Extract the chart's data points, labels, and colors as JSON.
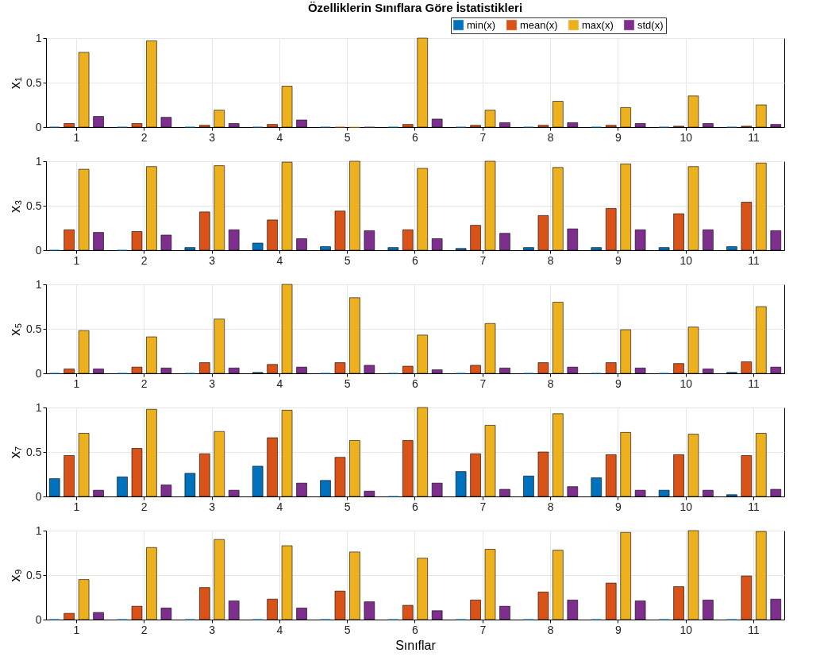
{
  "chart_data": [
    {
      "type": "bar",
      "title": "Özelliklerin Sınıflara Göre İstatistikleri",
      "ylabel": "x₁",
      "categories": [
        "1",
        "2",
        "3",
        "4",
        "5",
        "6",
        "7",
        "8",
        "9",
        "10",
        "11"
      ],
      "ylim": [
        0,
        1
      ],
      "yticks": [
        0,
        0.5,
        1
      ],
      "grid": true,
      "legend": "top right",
      "series": [
        {
          "name": "min(x)",
          "color": "#0072bd",
          "values": [
            0,
            0,
            0,
            0,
            0,
            0,
            0,
            0,
            0,
            0,
            0
          ]
        },
        {
          "name": "mean(x)",
          "color": "#d95319",
          "values": [
            0.04,
            0.04,
            0.02,
            0.03,
            0,
            0.03,
            0.02,
            0.02,
            0.02,
            0.01,
            0.01
          ]
        },
        {
          "name": "max(x)",
          "color": "#edb120",
          "values": [
            0.84,
            0.97,
            0.19,
            0.46,
            0,
            1.0,
            0.19,
            0.29,
            0.22,
            0.35,
            0.25
          ]
        },
        {
          "name": "std(x)",
          "color": "#7e2f8e",
          "values": [
            0.12,
            0.11,
            0.04,
            0.08,
            0,
            0.09,
            0.05,
            0.05,
            0.04,
            0.04,
            0.03
          ]
        }
      ]
    },
    {
      "type": "bar",
      "ylabel": "x₃",
      "categories": [
        "1",
        "2",
        "3",
        "4",
        "5",
        "6",
        "7",
        "8",
        "9",
        "10",
        "11"
      ],
      "ylim": [
        0,
        1
      ],
      "yticks": [
        0,
        0.5,
        1
      ],
      "grid": true,
      "series": [
        {
          "color": "#0072bd",
          "values": [
            0,
            0,
            0.03,
            0.08,
            0.04,
            0.03,
            0.02,
            0.03,
            0.03,
            0.03,
            0.04
          ]
        },
        {
          "color": "#d95319",
          "values": [
            0.23,
            0.21,
            0.43,
            0.34,
            0.44,
            0.23,
            0.28,
            0.39,
            0.47,
            0.41,
            0.54
          ]
        },
        {
          "color": "#edb120",
          "values": [
            0.91,
            0.94,
            0.95,
            0.99,
            1.0,
            0.92,
            1.0,
            0.93,
            0.97,
            0.94,
            0.98
          ]
        },
        {
          "color": "#7e2f8e",
          "values": [
            0.2,
            0.17,
            0.23,
            0.13,
            0.22,
            0.13,
            0.19,
            0.24,
            0.23,
            0.23,
            0.22
          ]
        }
      ]
    },
    {
      "type": "bar",
      "ylabel": "x₅",
      "categories": [
        "1",
        "2",
        "3",
        "4",
        "5",
        "6",
        "7",
        "8",
        "9",
        "10",
        "11"
      ],
      "ylim": [
        0,
        1
      ],
      "yticks": [
        0,
        0.5,
        1
      ],
      "grid": true,
      "series": [
        {
          "color": "#0072bd",
          "values": [
            0,
            0,
            0,
            0.01,
            0,
            0,
            0,
            0,
            0,
            0,
            0.01
          ]
        },
        {
          "color": "#d95319",
          "values": [
            0.05,
            0.07,
            0.12,
            0.1,
            0.12,
            0.08,
            0.09,
            0.12,
            0.12,
            0.11,
            0.13
          ]
        },
        {
          "color": "#edb120",
          "values": [
            0.48,
            0.41,
            0.61,
            1.0,
            0.85,
            0.43,
            0.56,
            0.8,
            0.49,
            0.52,
            0.75
          ]
        },
        {
          "color": "#7e2f8e",
          "values": [
            0.05,
            0.06,
            0.06,
            0.07,
            0.09,
            0.04,
            0.06,
            0.07,
            0.06,
            0.05,
            0.07
          ]
        }
      ]
    },
    {
      "type": "bar",
      "ylabel": "x₇",
      "categories": [
        "1",
        "2",
        "3",
        "4",
        "5",
        "6",
        "7",
        "8",
        "9",
        "10",
        "11"
      ],
      "ylim": [
        0,
        1
      ],
      "yticks": [
        0,
        0.5,
        1
      ],
      "grid": true,
      "series": [
        {
          "color": "#0072bd",
          "values": [
            0.2,
            0.22,
            0.26,
            0.34,
            0.18,
            0,
            0.28,
            0.23,
            0.21,
            0.07,
            0.02
          ]
        },
        {
          "color": "#d95319",
          "values": [
            0.46,
            0.54,
            0.48,
            0.66,
            0.44,
            0.63,
            0.48,
            0.5,
            0.47,
            0.47,
            0.46
          ]
        },
        {
          "color": "#edb120",
          "values": [
            0.71,
            0.98,
            0.73,
            0.97,
            0.63,
            1.0,
            0.8,
            0.93,
            0.72,
            0.7,
            0.71
          ]
        },
        {
          "color": "#7e2f8e",
          "values": [
            0.07,
            0.13,
            0.07,
            0.15,
            0.06,
            0.15,
            0.08,
            0.11,
            0.07,
            0.07,
            0.08
          ]
        }
      ]
    },
    {
      "type": "bar",
      "ylabel": "x₉",
      "xlabel": "Sınıflar",
      "categories": [
        "1",
        "2",
        "3",
        "4",
        "5",
        "6",
        "7",
        "8",
        "9",
        "10",
        "11"
      ],
      "ylim": [
        0,
        1
      ],
      "yticks": [
        0,
        0.5,
        1
      ],
      "grid": true,
      "series": [
        {
          "color": "#0072bd",
          "values": [
            0,
            0,
            0,
            0,
            0,
            0,
            0,
            0,
            0,
            0,
            0
          ]
        },
        {
          "color": "#d95319",
          "values": [
            0.07,
            0.15,
            0.36,
            0.23,
            0.32,
            0.16,
            0.22,
            0.31,
            0.41,
            0.37,
            0.49
          ]
        },
        {
          "color": "#edb120",
          "values": [
            0.45,
            0.81,
            0.9,
            0.83,
            0.76,
            0.69,
            0.79,
            0.78,
            0.98,
            1.0,
            0.99
          ]
        },
        {
          "color": "#7e2f8e",
          "values": [
            0.08,
            0.13,
            0.21,
            0.13,
            0.2,
            0.1,
            0.15,
            0.22,
            0.21,
            0.22,
            0.23
          ]
        }
      ]
    }
  ]
}
